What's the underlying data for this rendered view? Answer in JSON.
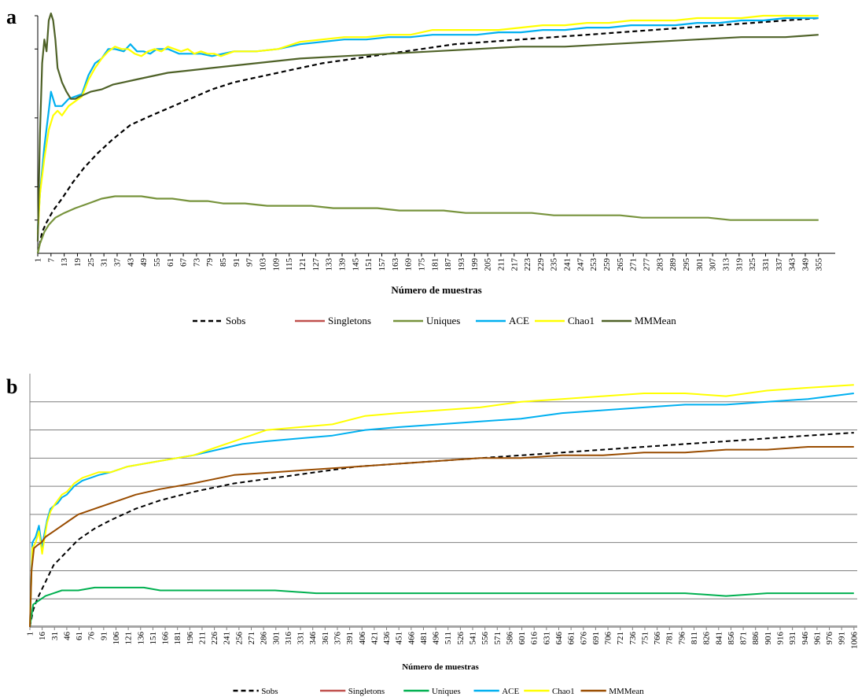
{
  "chart_data": [
    {
      "panel": "a",
      "type": "line",
      "xlabel": "Número de muestras",
      "x_ticks": [
        1,
        7,
        13,
        19,
        25,
        31,
        37,
        43,
        49,
        55,
        61,
        67,
        73,
        79,
        85,
        91,
        97,
        103,
        109,
        115,
        121,
        127,
        133,
        139,
        145,
        151,
        157,
        163,
        169,
        175,
        181,
        187,
        193,
        199,
        205,
        211,
        217,
        223,
        229,
        235,
        241,
        247,
        253,
        259,
        265,
        271,
        277,
        283,
        289,
        295,
        301,
        307,
        313,
        319,
        325,
        331,
        337,
        343,
        349,
        355
      ],
      "xlim": [
        1,
        359
      ],
      "ylim": [
        0,
        100
      ],
      "yticks": [
        14,
        28,
        57,
        86,
        100
      ],
      "grid": false,
      "legend_position": "bottom",
      "series": [
        {
          "name": "Sobs",
          "color": "#000000",
          "dash": true,
          "x": [
            1,
            3,
            5,
            8,
            12,
            17,
            22,
            28,
            35,
            43,
            50,
            60,
            70,
            80,
            90,
            100,
            110,
            120,
            130,
            145,
            160,
            175,
            190,
            205,
            220,
            235,
            250,
            265,
            280,
            295,
            310,
            325,
            340,
            355
          ],
          "y": [
            0,
            9,
            13,
            18,
            23,
            30,
            36,
            42,
            48,
            54,
            57,
            61,
            65,
            69,
            72,
            74,
            76,
            78,
            80,
            82,
            84,
            86,
            88,
            89,
            90,
            91,
            92,
            93,
            94,
            95,
            96,
            97,
            98,
            99
          ]
        },
        {
          "name": "Singletons",
          "color": "#c0504d",
          "dash": false,
          "x": [],
          "y": []
        },
        {
          "name": "Uniques",
          "color": "#77933c",
          "dash": false,
          "x": [
            1,
            2,
            4,
            6,
            9,
            13,
            18,
            24,
            30,
            36,
            42,
            48,
            55,
            62,
            70,
            78,
            85,
            95,
            105,
            115,
            125,
            135,
            145,
            155,
            165,
            175,
            185,
            195,
            205,
            215,
            225,
            235,
            245,
            255,
            265,
            275,
            285,
            295,
            305,
            315,
            325,
            335,
            345,
            355
          ],
          "y": [
            0,
            4,
            9,
            12,
            15,
            17,
            19,
            21,
            23,
            24,
            24,
            24,
            23,
            23,
            22,
            22,
            21,
            21,
            20,
            20,
            20,
            19,
            19,
            19,
            18,
            18,
            18,
            17,
            17,
            17,
            17,
            16,
            16,
            16,
            16,
            15,
            15,
            15,
            15,
            14,
            14,
            14,
            14,
            14
          ]
        },
        {
          "name": "ACE",
          "color": "#00b0f0",
          "dash": false,
          "x": [
            1,
            2,
            4,
            6,
            7,
            9,
            12,
            15,
            18,
            21,
            24,
            27,
            30,
            33,
            36,
            40,
            43,
            46,
            49,
            52,
            55,
            60,
            65,
            70,
            75,
            80,
            85,
            90,
            95,
            100,
            110,
            120,
            130,
            140,
            150,
            160,
            170,
            180,
            190,
            200,
            210,
            220,
            230,
            240,
            250,
            260,
            270,
            280,
            290,
            300,
            310,
            320,
            330,
            340,
            350,
            355
          ],
          "y": [
            10,
            25,
            45,
            60,
            68,
            62,
            62,
            65,
            66,
            67,
            75,
            80,
            82,
            86,
            86,
            85,
            88,
            85,
            85,
            84,
            86,
            86,
            84,
            84,
            84,
            83,
            84,
            85,
            85,
            85,
            86,
            88,
            89,
            90,
            90,
            91,
            91,
            92,
            92,
            92,
            93,
            93,
            94,
            94,
            95,
            95,
            96,
            96,
            96,
            97,
            97,
            98,
            98,
            99,
            99,
            99
          ]
        },
        {
          "name": "Chao1",
          "color": "#ffff00",
          "dash": false,
          "x": [
            1,
            2,
            4,
            6,
            8,
            10,
            12,
            15,
            18,
            21,
            24,
            27,
            30,
            33,
            36,
            39,
            42,
            45,
            48,
            51,
            54,
            57,
            60,
            63,
            66,
            69,
            72,
            75,
            78,
            81,
            84,
            87,
            90,
            95,
            100,
            110,
            120,
            130,
            140,
            150,
            160,
            170,
            180,
            190,
            200,
            210,
            220,
            230,
            240,
            250,
            260,
            270,
            280,
            290,
            300,
            310,
            320,
            330,
            340,
            350,
            355
          ],
          "y": [
            8,
            25,
            40,
            52,
            58,
            60,
            58,
            62,
            64,
            66,
            73,
            78,
            82,
            85,
            87,
            86,
            86,
            84,
            83,
            85,
            86,
            85,
            87,
            86,
            85,
            86,
            84,
            85,
            84,
            84,
            83,
            84,
            85,
            85,
            85,
            86,
            89,
            90,
            91,
            91,
            92,
            92,
            94,
            94,
            94,
            94,
            95,
            96,
            96,
            97,
            97,
            98,
            98,
            98,
            99,
            99,
            99,
            100,
            100,
            100,
            100
          ]
        },
        {
          "name": "MMMean",
          "color": "#4f6228",
          "dash": false,
          "x": [
            1,
            2,
            3,
            4,
            5,
            6,
            7,
            8,
            9,
            10,
            12,
            14,
            16,
            18,
            20,
            25,
            30,
            35,
            40,
            45,
            50,
            60,
            70,
            80,
            90,
            100,
            120,
            140,
            160,
            180,
            200,
            220,
            240,
            260,
            280,
            300,
            320,
            340,
            355
          ],
          "y": [
            5,
            50,
            80,
            90,
            85,
            98,
            101,
            98,
            90,
            78,
            72,
            68,
            65,
            65,
            66,
            68,
            69,
            71,
            72,
            73,
            74,
            76,
            77,
            78,
            79,
            80,
            82,
            83,
            84,
            85,
            86,
            87,
            87,
            88,
            89,
            90,
            91,
            91,
            92
          ]
        }
      ]
    },
    {
      "panel": "b",
      "type": "line",
      "xlabel": "Número de muestras",
      "x_ticks": [
        1,
        16,
        31,
        46,
        61,
        76,
        91,
        106,
        121,
        136,
        151,
        166,
        181,
        196,
        211,
        226,
        241,
        256,
        271,
        286,
        301,
        316,
        331,
        346,
        361,
        376,
        391,
        406,
        421,
        436,
        451,
        466,
        481,
        496,
        511,
        526,
        541,
        556,
        571,
        586,
        601,
        616,
        631,
        646,
        661,
        676,
        691,
        706,
        721,
        736,
        751,
        766,
        781,
        796,
        811,
        826,
        841,
        856,
        871,
        886,
        901,
        916,
        931,
        946,
        961,
        976,
        991,
        1006
      ],
      "xlim": [
        1,
        1010
      ],
      "ylim": [
        0,
        90
      ],
      "gridlines": [
        10,
        20,
        30,
        40,
        50,
        60,
        70,
        80
      ],
      "grid": true,
      "legend_position": "bottom",
      "series": [
        {
          "name": "Sobs",
          "color": "#000000",
          "dash": true,
          "x": [
            1,
            5,
            10,
            15,
            20,
            30,
            40,
            50,
            60,
            80,
            100,
            130,
            160,
            200,
            250,
            300,
            350,
            400,
            450,
            500,
            550,
            600,
            650,
            700,
            750,
            800,
            850,
            900,
            950,
            1006
          ],
          "y": [
            0,
            6,
            10,
            13,
            16,
            22,
            25,
            28,
            31,
            35,
            38,
            42,
            45,
            48,
            51,
            53,
            55,
            57,
            58,
            59,
            60,
            61,
            62,
            63,
            64,
            65,
            66,
            67,
            68,
            69
          ]
        },
        {
          "name": "Singletons",
          "color": "#c0504d",
          "dash": false,
          "x": [],
          "y": []
        },
        {
          "name": "Uniques",
          "color": "#00b050",
          "dash": false,
          "x": [
            1,
            5,
            10,
            15,
            20,
            30,
            40,
            60,
            80,
            100,
            120,
            140,
            160,
            200,
            250,
            300,
            350,
            400,
            450,
            500,
            550,
            600,
            650,
            700,
            750,
            800,
            850,
            900,
            950,
            1006
          ],
          "y": [
            0,
            8,
            9,
            10,
            11,
            12,
            13,
            13,
            14,
            14,
            14,
            14,
            13,
            13,
            13,
            13,
            12,
            12,
            12,
            12,
            12,
            12,
            12,
            12,
            12,
            12,
            11,
            12,
            12,
            12
          ]
        },
        {
          "name": "ACE",
          "color": "#00b0f0",
          "dash": false,
          "x": [
            1,
            4,
            8,
            12,
            16,
            18,
            22,
            26,
            30,
            35,
            40,
            46,
            55,
            65,
            75,
            85,
            100,
            120,
            140,
            160,
            180,
            200,
            230,
            260,
            290,
            330,
            370,
            410,
            450,
            500,
            550,
            600,
            650,
            700,
            750,
            800,
            850,
            900,
            950,
            1006
          ],
          "y": [
            0,
            30,
            32,
            36,
            28,
            32,
            38,
            42,
            43,
            44,
            46,
            47,
            50,
            52,
            53,
            54,
            55,
            57,
            58,
            59,
            60,
            61,
            63,
            65,
            66,
            67,
            68,
            70,
            71,
            72,
            73,
            74,
            76,
            77,
            78,
            79,
            79,
            80,
            81,
            83
          ]
        },
        {
          "name": "Chao1",
          "color": "#ffff00",
          "dash": false,
          "x": [
            1,
            4,
            8,
            12,
            16,
            18,
            22,
            26,
            30,
            35,
            40,
            46,
            55,
            65,
            75,
            85,
            100,
            120,
            140,
            160,
            180,
            200,
            230,
            260,
            290,
            330,
            370,
            410,
            450,
            500,
            550,
            600,
            650,
            700,
            750,
            800,
            850,
            900,
            950,
            1006
          ],
          "y": [
            0,
            28,
            30,
            34,
            26,
            30,
            37,
            41,
            43,
            45,
            47,
            48,
            51,
            53,
            54,
            55,
            55,
            57,
            58,
            59,
            60,
            61,
            64,
            67,
            70,
            71,
            72,
            75,
            76,
            77,
            78,
            80,
            81,
            82,
            83,
            83,
            82,
            84,
            85,
            86
          ]
        },
        {
          "name": "MMMean",
          "color": "#994c00",
          "dash": false,
          "x": [
            1,
            3,
            6,
            10,
            15,
            20,
            30,
            40,
            50,
            60,
            80,
            100,
            130,
            160,
            200,
            250,
            300,
            350,
            400,
            450,
            500,
            550,
            600,
            650,
            700,
            750,
            800,
            850,
            900,
            950,
            1006
          ],
          "y": [
            0,
            20,
            28,
            29,
            30,
            32,
            34,
            36,
            38,
            40,
            42,
            44,
            47,
            49,
            51,
            54,
            55,
            56,
            57,
            58,
            59,
            60,
            60,
            61,
            61,
            62,
            62,
            63,
            63,
            64,
            64
          ]
        }
      ]
    }
  ]
}
